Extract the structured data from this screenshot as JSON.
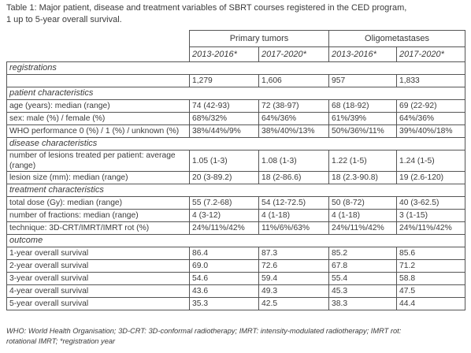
{
  "caption_lines": [
    "Table 1: Major patient, disease and treatment variables of SBRT courses registered in the CED program,",
    "1 up to 5-year overall survival."
  ],
  "table": {
    "group_headers": [
      "Primary tumors",
      "Oligometastases"
    ],
    "period_headers": [
      "2013-2016*",
      "2017-2020*",
      "2013-2016*",
      "2017-2020*"
    ],
    "sections": [
      {
        "title": "registrations",
        "rows": [
          {
            "values": [
              "1,279",
              "1,606",
              "957",
              "1,833"
            ]
          }
        ]
      },
      {
        "title": "patient characteristics",
        "rows": [
          {
            "label": "age (years): median (range)",
            "values": [
              "74 (42-93)",
              "72 (38-97)",
              "68 (18-92)",
              "69 (22-92)"
            ]
          },
          {
            "label": "sex: male (%) / female (%)",
            "values": [
              "68%/32%",
              "64%/36%",
              "61%/39%",
              "64%/36%"
            ]
          },
          {
            "label": "WHO performance 0 (%) / 1 (%) / unknown (%)",
            "values": [
              "38%/44%/9%",
              "38%/40%/13%",
              "50%/36%/11%",
              "39%/40%/18%"
            ]
          }
        ]
      },
      {
        "title": "disease characteristics",
        "rows": [
          {
            "label": "number of lesions treated per patient: average (range)",
            "values": [
              "1.05 (1-3)",
              "1.08 (1-3)",
              "1.22 (1-5)",
              "1.24 (1-5)"
            ]
          },
          {
            "label": "lesion size (mm): median (range)",
            "values": [
              "20 (3-89.2)",
              "18 (2-86.6)",
              "18 (2.3-90.8)",
              "19 (2.6-120)"
            ]
          }
        ]
      },
      {
        "title": "treatment characteristics",
        "rows": [
          {
            "label": "total dose (Gy): median (range)",
            "values": [
              "55 (7.2-68)",
              "54 (12-72.5)",
              "50 (8-72)",
              "40 (3-62.5)"
            ]
          },
          {
            "label": "number of fractions: median (range)",
            "values": [
              "4 (3-12)",
              "4 (1-18)",
              "4 (1-18)",
              "3 (1-15)"
            ]
          },
          {
            "label": "technique: 3D-CRT/IMRT/IMRT rot (%)",
            "values": [
              "24%/11%/42%",
              "11%/6%/63%",
              "24%/11%/42%",
              "24%/11%/42%"
            ]
          }
        ]
      },
      {
        "title": "outcome",
        "rows": [
          {
            "label": "1-year overall survival",
            "values": [
              "86.4",
              "87.3",
              "85.2",
              "85.6"
            ]
          },
          {
            "label": "2-year overall survival",
            "values": [
              "69.0",
              "72.6",
              "67.8",
              "71.2"
            ]
          },
          {
            "label": "3-year overall survival",
            "values": [
              "54.6",
              "59.4",
              "55.4",
              "58.8"
            ]
          },
          {
            "label": "4-year overall survival",
            "values": [
              "43.6",
              "49.3",
              "45.3",
              "47.5"
            ]
          },
          {
            "label": "5-year overall survival",
            "values": [
              "35.3",
              "42.5",
              "38.3",
              "44.4"
            ]
          }
        ]
      }
    ]
  },
  "footnote_lines": [
    "WHO: World Health Organisation; 3D-CRT: 3D-conformal radiotherapy; IMRT: intensity-modulated radiotherapy; IMRT rot:",
    "rotational IMRT; *registration year"
  ]
}
